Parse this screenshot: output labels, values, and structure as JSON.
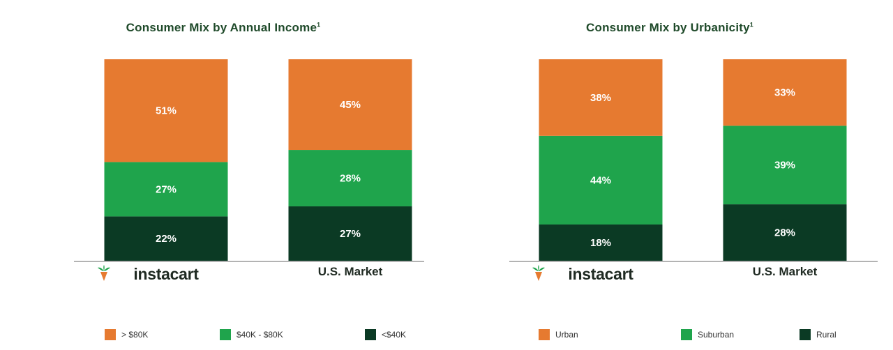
{
  "colors": {
    "high": "#e67a30",
    "mid": "#1fa44c",
    "low": "#0b3a24",
    "axis": "#9a9a9a",
    "title": "#1f4a2a"
  },
  "brand": {
    "icon": "carrot-logo-icon",
    "name": "instacart"
  },
  "chart_data": [
    {
      "type": "bar",
      "stacked": true,
      "title": "Consumer Mix by Annual Income",
      "title_footnote": "1",
      "categories": [
        "instacart",
        "U.S. Market"
      ],
      "ylim": [
        0,
        100
      ],
      "series": [
        {
          "name": "<$40K",
          "values": [
            22,
            27
          ],
          "labels": [
            "22%",
            "27%"
          ]
        },
        {
          "name": "$40K - $80K",
          "values": [
            27,
            28
          ],
          "labels": [
            "27%",
            "28%"
          ]
        },
        {
          "name": "> $80K",
          "values": [
            51,
            45
          ],
          "labels": [
            "51%",
            "45%"
          ]
        }
      ],
      "legend": [
        "> $80K",
        "$40K - $80K",
        "<$40K"
      ],
      "legend_position": "bottom",
      "grid": false
    },
    {
      "type": "bar",
      "stacked": true,
      "title": "Consumer Mix by Urbanicity",
      "title_footnote": "1",
      "categories": [
        "instacart",
        "U.S. Market"
      ],
      "ylim": [
        0,
        100
      ],
      "series": [
        {
          "name": "Rural",
          "values": [
            18,
            28
          ],
          "labels": [
            "18%",
            "28%"
          ]
        },
        {
          "name": "Suburban",
          "values": [
            44,
            39
          ],
          "labels": [
            "44%",
            "39%"
          ]
        },
        {
          "name": "Urban",
          "values": [
            38,
            33
          ],
          "labels": [
            "38%",
            "33%"
          ]
        }
      ],
      "legend": [
        "Urban",
        "Suburban",
        "Rural"
      ],
      "legend_position": "bottom",
      "grid": false
    }
  ]
}
